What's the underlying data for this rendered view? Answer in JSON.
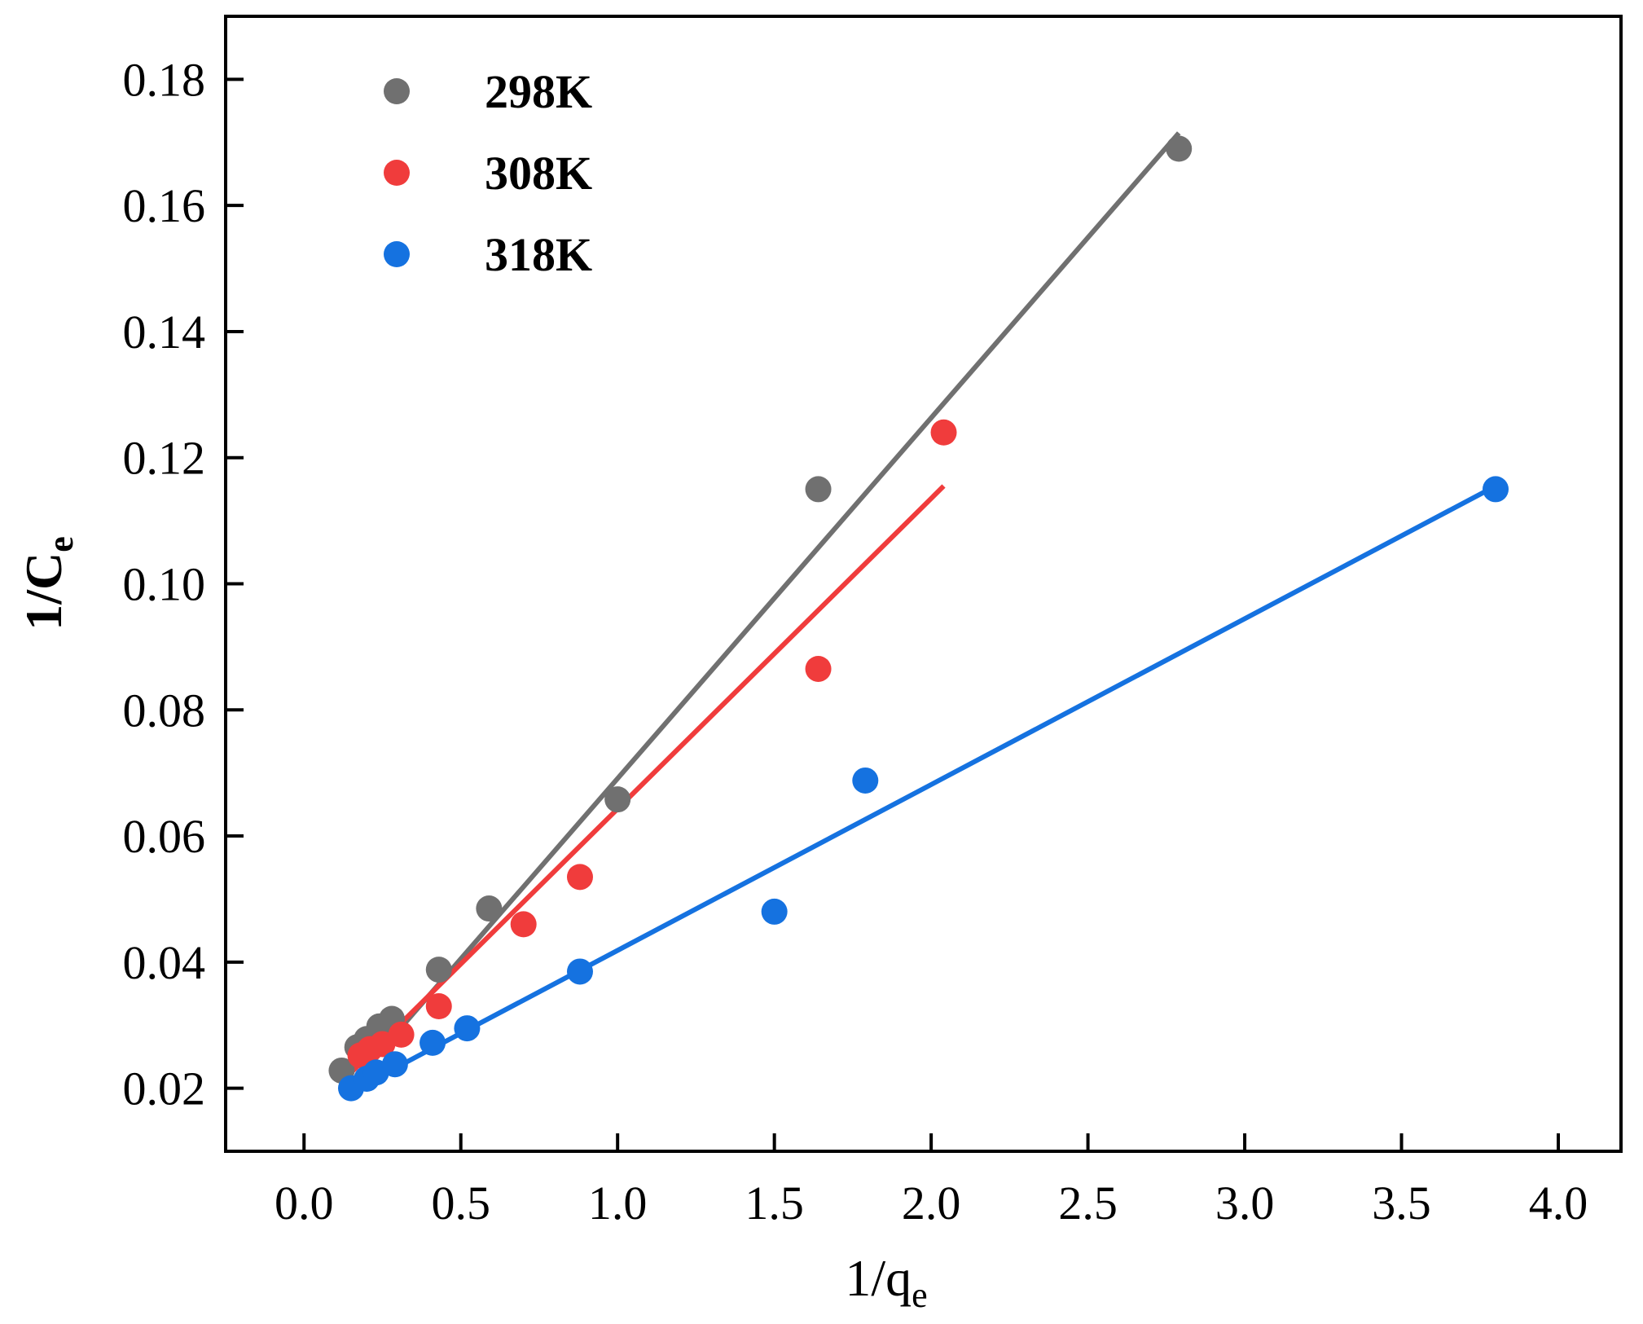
{
  "chart_data": {
    "type": "scatter",
    "title": "",
    "xlabel": "1/q",
    "xlabel_sub": "e",
    "ylabel": "1/C",
    "ylabel_sub": "e",
    "xlim": [
      -0.25,
      4.2
    ],
    "ylim": [
      0.01,
      0.19
    ],
    "x_ticks": [
      "0.0",
      "0.5",
      "1.0",
      "1.5",
      "2.0",
      "2.5",
      "3.0",
      "3.5",
      "4.0"
    ],
    "y_ticks": [
      "0.02",
      "0.04",
      "0.06",
      "0.08",
      "0.10",
      "0.12",
      "0.14",
      "0.16",
      "0.18"
    ],
    "grid": false,
    "legend_position": "top-left",
    "series": [
      {
        "name": "298K",
        "color": "#707070",
        "points": [
          [
            0.12,
            0.0228
          ],
          [
            0.17,
            0.0265
          ],
          [
            0.2,
            0.0278
          ],
          [
            0.24,
            0.0298
          ],
          [
            0.28,
            0.031
          ],
          [
            0.43,
            0.0388
          ],
          [
            0.59,
            0.0485
          ],
          [
            1.0,
            0.0658
          ],
          [
            1.64,
            0.115
          ],
          [
            2.79,
            0.169
          ]
        ],
        "fit": [
          [
            0.15,
            0.0205
          ],
          [
            2.79,
            0.1715
          ]
        ]
      },
      {
        "name": "308K",
        "color": "#f03c3c",
        "points": [
          [
            0.18,
            0.0252
          ],
          [
            0.21,
            0.0262
          ],
          [
            0.25,
            0.027
          ],
          [
            0.31,
            0.0285
          ],
          [
            0.43,
            0.033
          ],
          [
            0.7,
            0.046
          ],
          [
            0.88,
            0.0535
          ],
          [
            1.64,
            0.0865
          ],
          [
            2.04,
            0.124
          ]
        ],
        "fit": [
          [
            0.12,
            0.021
          ],
          [
            2.04,
            0.1155
          ]
        ]
      },
      {
        "name": "318K",
        "color": "#1572e0",
        "points": [
          [
            0.15,
            0.02
          ],
          [
            0.2,
            0.0215
          ],
          [
            0.23,
            0.0225
          ],
          [
            0.29,
            0.0238
          ],
          [
            0.41,
            0.0272
          ],
          [
            0.52,
            0.0295
          ],
          [
            0.88,
            0.0385
          ],
          [
            1.5,
            0.048
          ],
          [
            1.79,
            0.0688
          ],
          [
            3.8,
            0.115
          ]
        ],
        "fit": [
          [
            0.15,
            0.0195
          ],
          [
            3.8,
            0.1155
          ]
        ]
      }
    ]
  }
}
